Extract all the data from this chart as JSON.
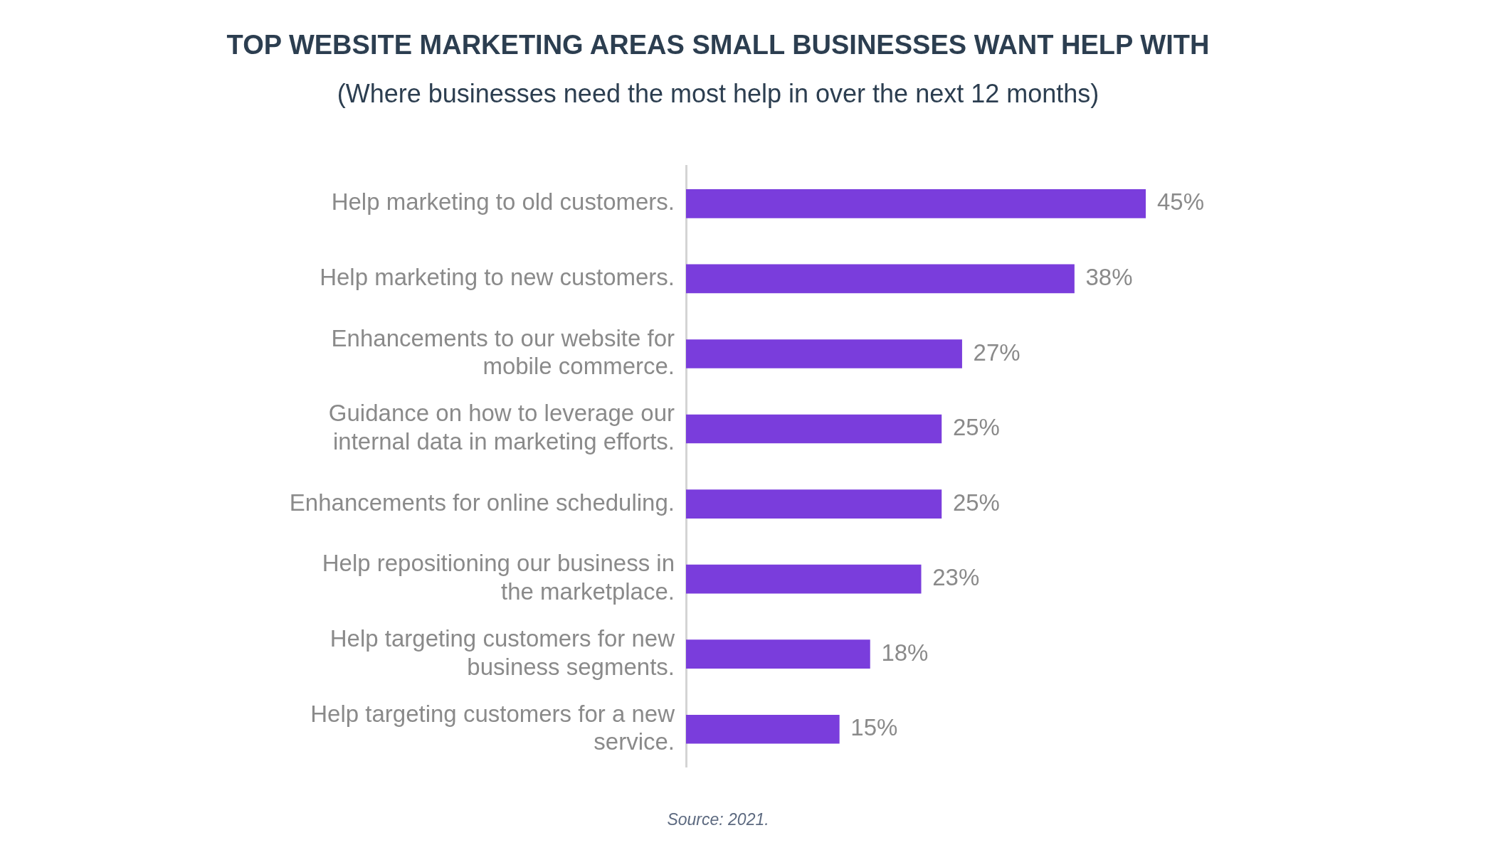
{
  "chart_data": {
    "type": "bar",
    "orientation": "horizontal",
    "title": "TOP WEBSITE MARKETING AREAS SMALL BUSINESSES WANT HELP WITH",
    "subtitle": "(Where businesses need the most help in over the next 12 months)",
    "categories": [
      "Help marketing to old customers.",
      "Help marketing to new customers.",
      "Enhancements to our website for mobile commerce.",
      "Guidance on how to leverage our internal data in marketing efforts.",
      "Enhancements for online scheduling.",
      "Help repositioning our business in the marketplace.",
      "Help targeting customers for new business segments.",
      "Help targeting customers for a new service."
    ],
    "values": [
      45,
      38,
      27,
      25,
      25,
      23,
      18,
      15
    ],
    "value_labels": [
      "45%",
      "38%",
      "27%",
      "25%",
      "25%",
      "23%",
      "18%",
      "15%"
    ],
    "color": "#7a3ddc",
    "tick_labels": "y",
    "annotations": [
      "Source: 2021."
    ]
  }
}
